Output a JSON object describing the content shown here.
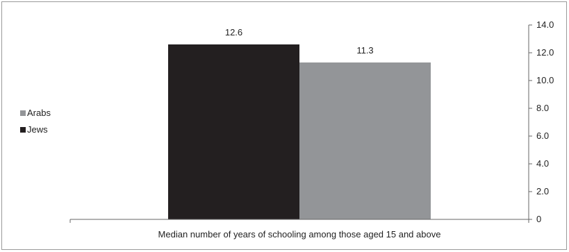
{
  "chart_data": {
    "type": "bar",
    "categories": [
      "Median number of years of schooling among those aged 15 and above"
    ],
    "series": [
      {
        "name": "Jews",
        "values": [
          12.6
        ],
        "color": "#231f20"
      },
      {
        "name": "Arabs",
        "values": [
          11.3
        ],
        "color": "#939598"
      }
    ],
    "ylim": [
      0,
      14
    ],
    "yticks": [
      "0",
      "2.0",
      "4.0",
      "6.0",
      "8.0",
      "10.0",
      "12.0",
      "14.0"
    ],
    "data_labels": [
      "12.6",
      "11.3"
    ],
    "y_axis_side": "right",
    "grid": false,
    "legend": {
      "placement": "left",
      "entries": [
        {
          "label": "Arabs",
          "color": "#939598"
        },
        {
          "label": "Jews",
          "color": "#231f20"
        }
      ]
    }
  }
}
